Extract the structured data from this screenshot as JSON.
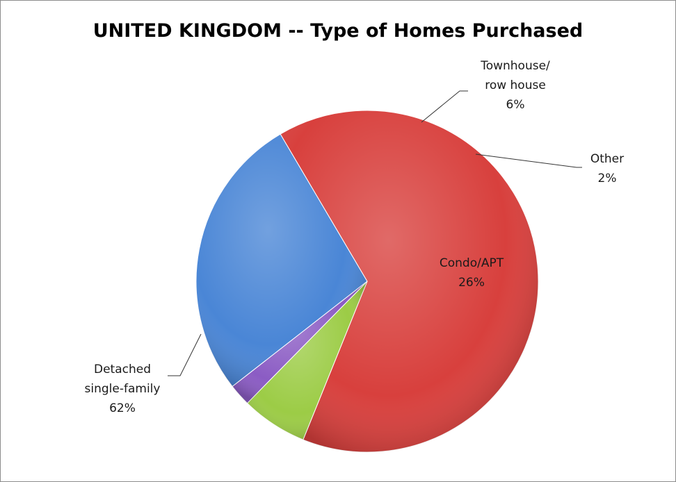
{
  "chart_data": {
    "type": "pie",
    "title": "UNITED KINGDOM -- Type of Homes Purchased",
    "legend": "none",
    "slices": [
      {
        "name": "Condo/APT",
        "value": 26,
        "label": "26%",
        "color": "#4a86d6"
      },
      {
        "name": "Detached single-family",
        "value": 62,
        "label": "62%",
        "color": "#d8403d"
      },
      {
        "name": "Townhouse/ row house",
        "value": 6,
        "label": "6%",
        "color": "#9ccc46"
      },
      {
        "name": "Other",
        "value": 2,
        "label": "2%",
        "color": "#8b5cc4"
      }
    ]
  }
}
